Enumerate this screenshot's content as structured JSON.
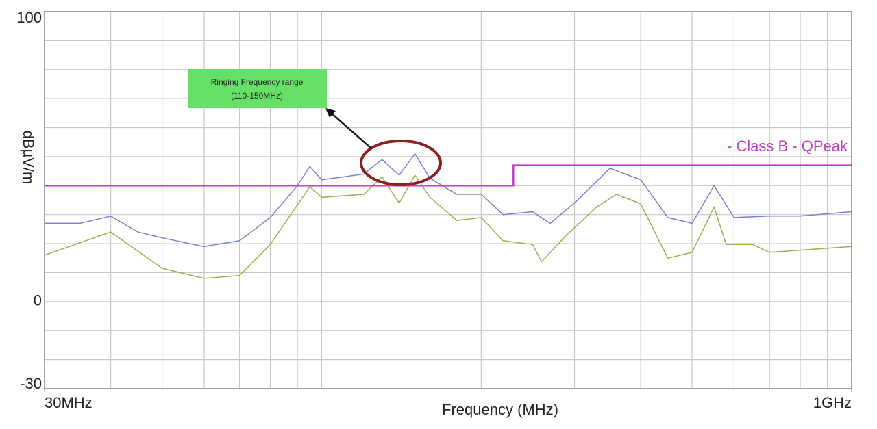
{
  "chart_data": {
    "type": "line",
    "xlabel": "Frequency (MHz)",
    "ylabel": "dBµV/m",
    "log_x": true,
    "grid": true,
    "xlim": [
      30,
      1000
    ],
    "ylim": [
      -30,
      100
    ],
    "xticks": [
      {
        "value": 30,
        "label": "30MHz"
      },
      {
        "value": 1000,
        "label": "1GHz"
      }
    ],
    "yticks": [
      -30,
      0,
      100
    ],
    "xgrid": [
      40,
      50,
      60,
      70,
      80,
      90,
      100,
      200,
      300,
      400,
      500,
      600,
      700,
      800,
      900
    ],
    "ygrid": [
      -20,
      -10,
      10,
      20,
      30,
      40,
      50,
      60,
      70,
      80,
      90
    ],
    "annotation": [
      "Ringing Frequency range",
      "(110-150MHz)"
    ],
    "series": [
      {
        "color": "#7b7fd6",
        "x": [
          30,
          35,
          40,
          45,
          50,
          60,
          70,
          80,
          90,
          95,
          100,
          120,
          130,
          140,
          150,
          160,
          180,
          200,
          220,
          250,
          270,
          300,
          350,
          400,
          450,
          500,
          550,
          600,
          700,
          800,
          1000
        ],
        "values": [
          27,
          27,
          29.5,
          24,
          22,
          19,
          21,
          29,
          40,
          46.6,
          42,
          44,
          49,
          43.6,
          51,
          42.6,
          37,
          37,
          30,
          31,
          27,
          34,
          46,
          42,
          29,
          27,
          40,
          29,
          29.5,
          29.5,
          31
        ]
      },
      {
        "color": "#a8a850",
        "x": [
          30,
          40,
          50,
          60,
          70,
          80,
          95,
          100,
          120,
          130,
          140,
          150,
          160,
          180,
          200,
          220,
          250,
          260,
          290,
          330,
          360,
          400,
          450,
          500,
          550,
          580,
          650,
          700,
          1000
        ],
        "values": [
          16,
          24,
          11.5,
          8,
          9,
          19.7,
          39.6,
          36,
          37,
          43,
          34,
          43.6,
          36,
          28,
          29,
          21,
          19.7,
          13.8,
          23,
          32.6,
          37,
          33.7,
          15,
          17,
          32.6,
          19.7,
          19.7,
          17,
          19
        ]
      },
      {
        "name": "- Class B - QPeak",
        "color": "#c040c0",
        "x": [
          30,
          230,
          230,
          1000
        ],
        "values": [
          40,
          40,
          47,
          47
        ]
      }
    ]
  }
}
